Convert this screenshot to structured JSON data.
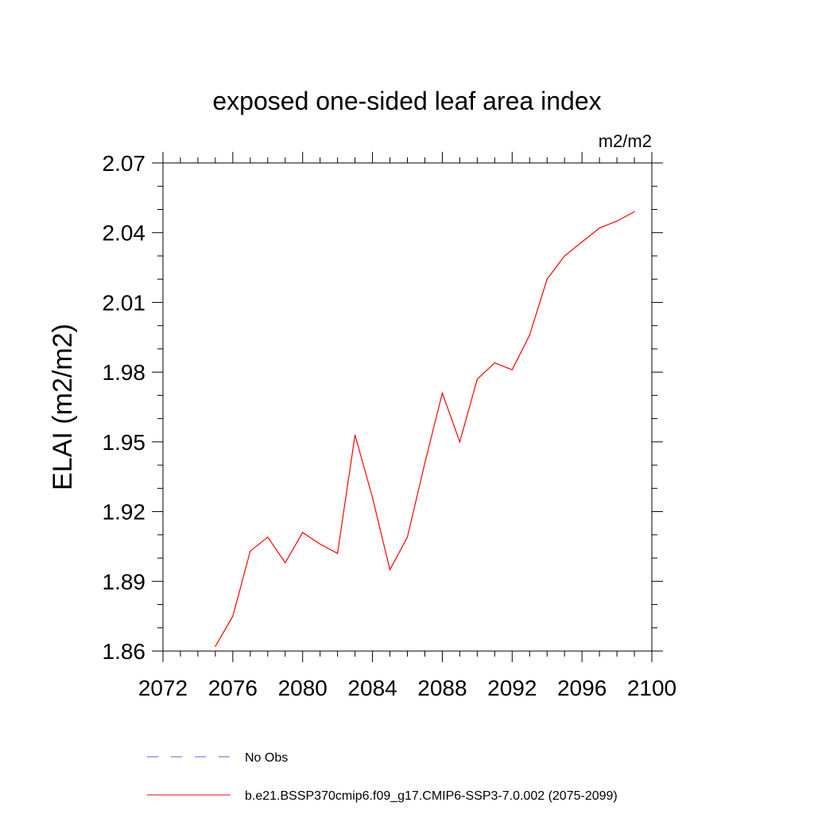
{
  "chart_data": {
    "type": "line",
    "title": "exposed one-sided leaf area index",
    "units": "m2/m2",
    "xlabel": "",
    "ylabel": "ELAI  (m2/m2)",
    "xlim": [
      2072,
      2100
    ],
    "ylim": [
      1.86,
      2.07
    ],
    "x_ticks": [
      2072,
      2076,
      2080,
      2084,
      2088,
      2092,
      2096,
      2100
    ],
    "x_tick_labels": [
      "2072",
      "2076",
      "2080",
      "2084",
      "2088",
      "2092",
      "2096",
      "2100"
    ],
    "y_ticks": [
      1.86,
      1.89,
      1.92,
      1.95,
      1.98,
      2.01,
      2.04,
      2.07
    ],
    "y_tick_labels": [
      "1.86",
      "1.89",
      "1.92",
      "1.95",
      "1.98",
      "2.01",
      "2.04",
      "2.07"
    ],
    "grid": false,
    "series": [
      {
        "name": "b.e21.BSSP370cmip6.f09_g17.CMIP6-SSP3-7.0.002 (2075-2099)",
        "color": "#ff0000",
        "x": [
          2075,
          2076,
          2077,
          2078,
          2079,
          2080,
          2081,
          2082,
          2083,
          2084,
          2085,
          2086,
          2087,
          2088,
          2089,
          2090,
          2091,
          2092,
          2093,
          2094,
          2095,
          2096,
          2097,
          2098,
          2099
        ],
        "values": [
          1.862,
          1.875,
          1.903,
          1.909,
          1.898,
          1.911,
          1.906,
          1.902,
          1.953,
          1.926,
          1.895,
          1.909,
          1.941,
          1.971,
          1.95,
          1.977,
          1.984,
          1.981,
          1.996,
          2.02,
          2.03,
          2.036,
          2.042,
          2.045,
          2.049
        ]
      }
    ],
    "legend": [
      {
        "label": "No Obs",
        "color": "#6a5acd",
        "style": "dashed"
      },
      {
        "label": "b.e21.BSSP370cmip6.f09_g17.CMIP6-SSP3-7.0.002 (2075-2099)",
        "color": "#ff0000",
        "style": "solid"
      }
    ],
    "legend_position": "bottom"
  }
}
